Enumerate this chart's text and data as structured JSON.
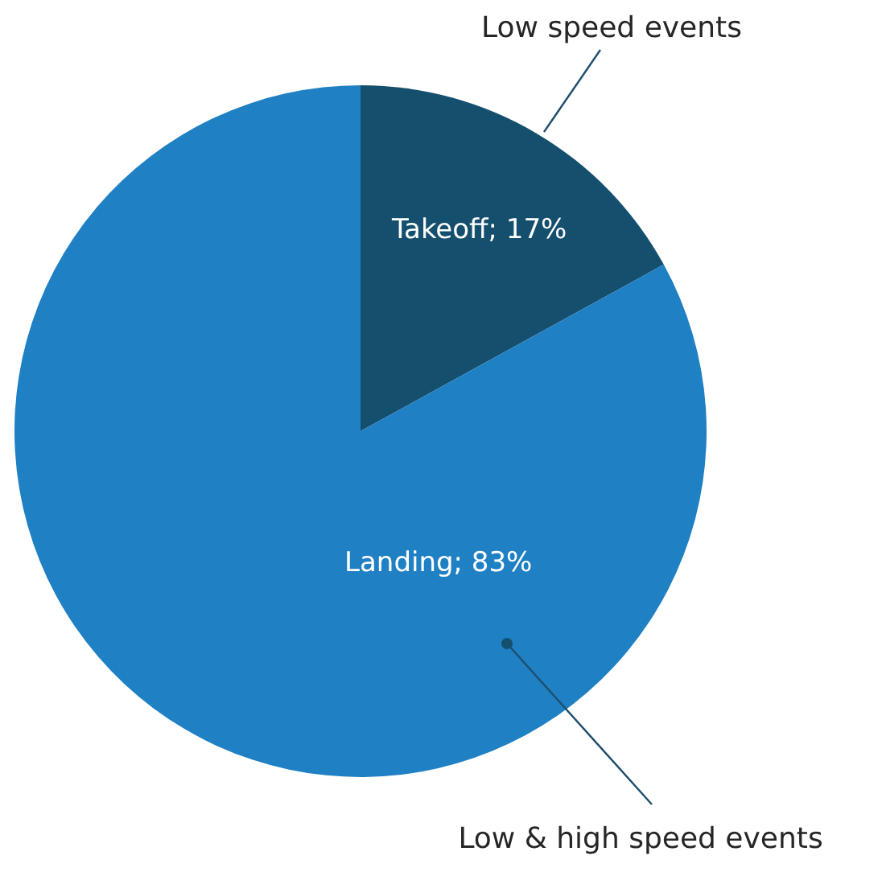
{
  "chart_data": {
    "type": "pie",
    "categories": [
      "Takeoff",
      "Landing"
    ],
    "values": [
      17,
      83
    ],
    "colors": [
      "#154f6e",
      "#1f80c4"
    ],
    "value_labels": [
      "17%",
      "83%"
    ],
    "annotations": [
      "Low speed events",
      "Low & high speed events"
    ]
  }
}
